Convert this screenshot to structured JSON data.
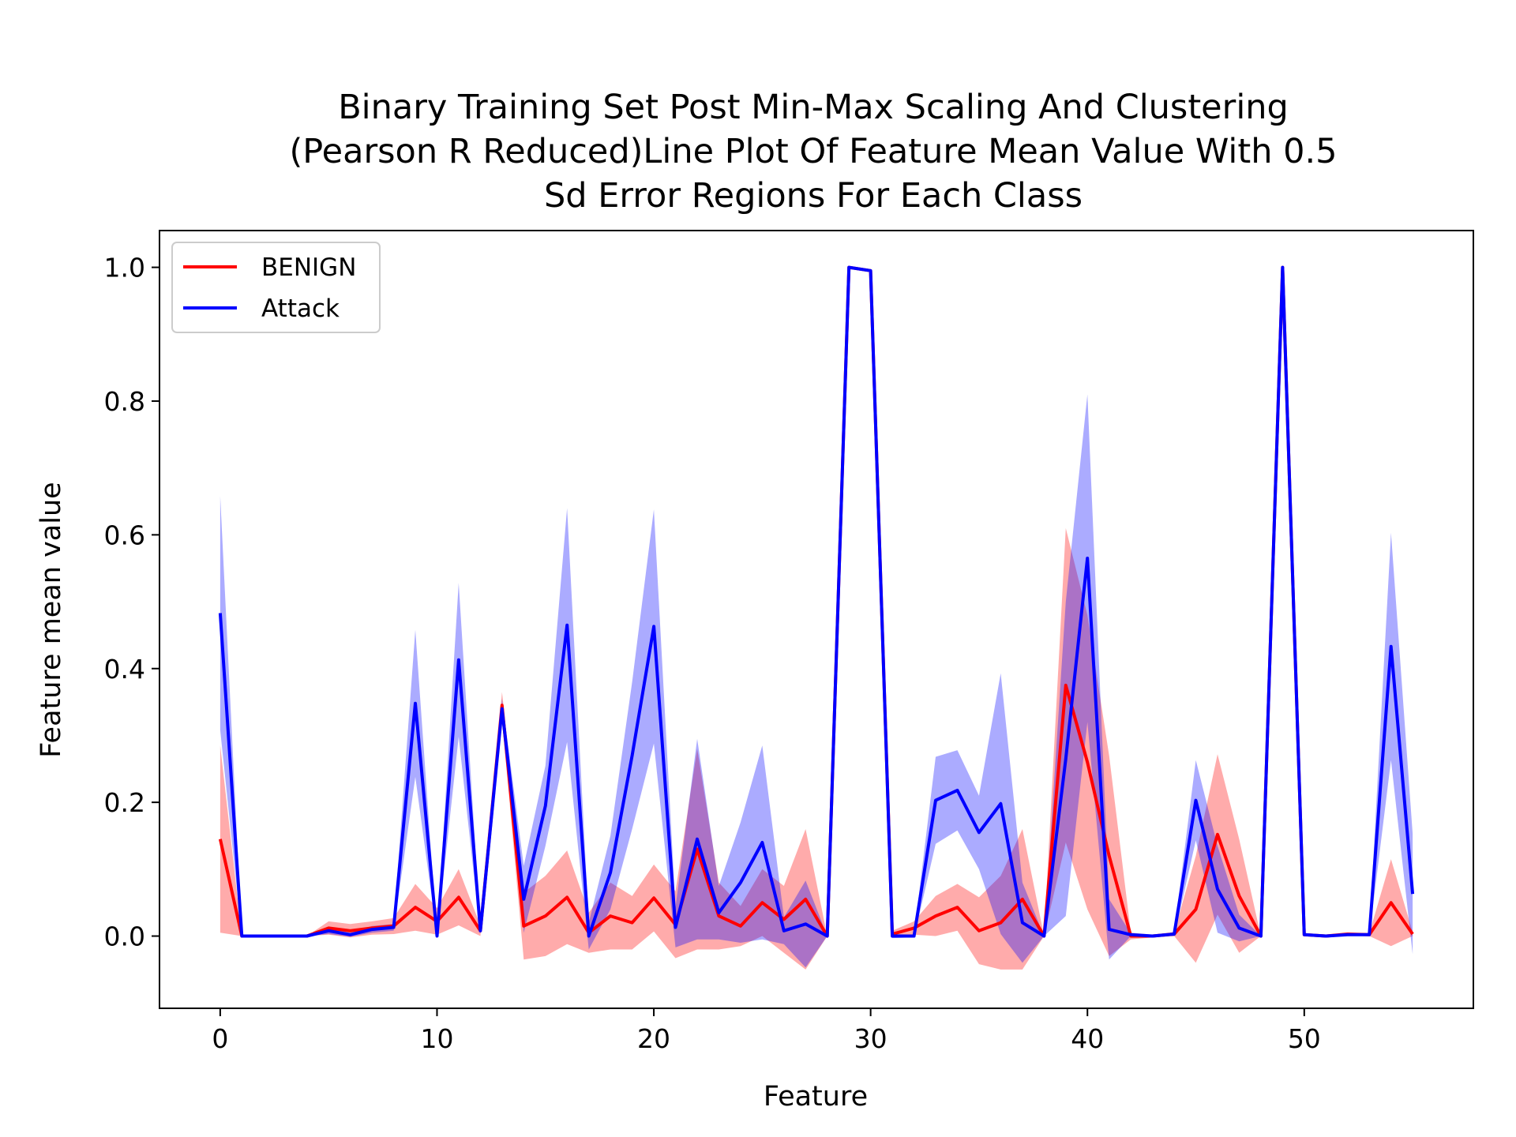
{
  "chart_data": {
    "type": "line",
    "title_lines": [
      "Binary Training Set Post Min-Max Scaling And Clustering",
      "(Pearson R Reduced)Line Plot Of Feature Mean Value With 0.5",
      "Sd Error Regions For Each Class"
    ],
    "xlabel": "Feature",
    "ylabel": "Feature mean value",
    "xlim": [
      -2.8,
      57.8
    ],
    "ylim": [
      -0.108,
      1.055
    ],
    "xticks": [
      0,
      10,
      20,
      30,
      40,
      50
    ],
    "yticks": [
      0.0,
      0.2,
      0.4,
      0.6,
      0.8,
      1.0
    ],
    "ytick_labels": [
      "0.0",
      "0.2",
      "0.4",
      "0.6",
      "0.8",
      "1.0"
    ],
    "legend_position": "top-left",
    "grid": false,
    "x": [
      0,
      1,
      2,
      3,
      4,
      5,
      6,
      7,
      8,
      9,
      10,
      11,
      12,
      13,
      14,
      15,
      16,
      17,
      18,
      19,
      20,
      21,
      22,
      23,
      24,
      25,
      26,
      27,
      28,
      29,
      30,
      31,
      32,
      33,
      34,
      35,
      36,
      37,
      38,
      39,
      40,
      41,
      42,
      43,
      44,
      45,
      46,
      47,
      48,
      49,
      50,
      51,
      52,
      53,
      54,
      55
    ],
    "series": [
      {
        "name": "BENIGN",
        "color": "#ff0000",
        "fill": "rgba(255,0,0,0.33)",
        "values": [
          0.145,
          0.0,
          0.0,
          0.0,
          0.0,
          0.012,
          0.008,
          0.012,
          0.015,
          0.043,
          0.022,
          0.058,
          0.008,
          0.345,
          0.015,
          0.03,
          0.058,
          0.005,
          0.03,
          0.02,
          0.057,
          0.017,
          0.13,
          0.03,
          0.015,
          0.05,
          0.025,
          0.055,
          0.0,
          1.0,
          0.995,
          0.003,
          0.012,
          0.03,
          0.043,
          0.008,
          0.02,
          0.055,
          0.0,
          0.375,
          0.26,
          0.12,
          0.0,
          0.0,
          0.003,
          0.04,
          0.152,
          0.06,
          0.0,
          1.0,
          0.002,
          0.0,
          0.003,
          0.002,
          0.05,
          0.003
        ],
        "half_width": [
          0.14,
          0.0,
          0.0,
          0.0,
          0.0,
          0.01,
          0.01,
          0.01,
          0.012,
          0.035,
          0.02,
          0.042,
          0.008,
          0.02,
          0.05,
          0.06,
          0.07,
          0.03,
          0.05,
          0.04,
          0.05,
          0.05,
          0.15,
          0.05,
          0.03,
          0.05,
          0.05,
          0.105,
          0.0,
          0.0,
          0.0,
          0.005,
          0.01,
          0.03,
          0.035,
          0.05,
          0.07,
          0.105,
          0.0,
          0.235,
          0.22,
          0.15,
          0.005,
          0.002,
          0.003,
          0.08,
          0.12,
          0.085,
          0.0,
          0.0,
          0.002,
          0.0,
          0.002,
          0.002,
          0.065,
          0.003
        ]
      },
      {
        "name": "Attack",
        "color": "#0000ff",
        "fill": "rgba(0,0,255,0.33)",
        "values": [
          0.483,
          0.0,
          0.0,
          0.0,
          0.0,
          0.008,
          0.002,
          0.01,
          0.013,
          0.348,
          0.0,
          0.413,
          0.008,
          0.34,
          0.055,
          0.195,
          0.465,
          0.0,
          0.095,
          0.27,
          0.463,
          0.013,
          0.145,
          0.035,
          0.08,
          0.14,
          0.008,
          0.018,
          0.0,
          1.0,
          0.995,
          0.0,
          0.0,
          0.203,
          0.218,
          0.155,
          0.198,
          0.02,
          0.0,
          0.265,
          0.565,
          0.01,
          0.002,
          0.0,
          0.003,
          0.203,
          0.07,
          0.012,
          0.0,
          1.0,
          0.002,
          0.0,
          0.002,
          0.002,
          0.433,
          0.063
        ],
        "half_width": [
          0.175,
          0.0,
          0.0,
          0.0,
          0.0,
          0.005,
          0.003,
          0.005,
          0.005,
          0.11,
          0.0,
          0.115,
          0.005,
          0.015,
          0.05,
          0.06,
          0.175,
          0.02,
          0.055,
          0.11,
          0.175,
          0.03,
          0.15,
          0.04,
          0.09,
          0.145,
          0.02,
          0.065,
          0.0,
          0.0,
          0.0,
          0.003,
          0.002,
          0.065,
          0.06,
          0.055,
          0.195,
          0.06,
          0.0,
          0.235,
          0.245,
          0.045,
          0.002,
          0.0,
          0.003,
          0.06,
          0.065,
          0.02,
          0.0,
          0.0,
          0.002,
          0.0,
          0.002,
          0.002,
          0.17,
          0.09
        ]
      }
    ]
  }
}
